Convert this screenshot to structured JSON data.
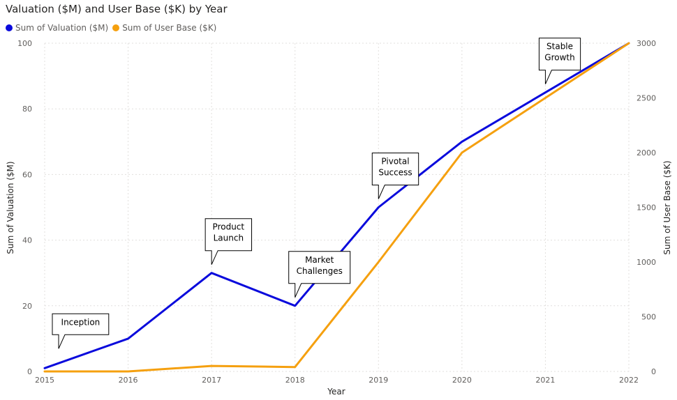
{
  "chart_data": {
    "type": "line",
    "title": "Valuation ($M) and User Base ($K) by Year",
    "xlabel": "Year",
    "ylabel": "Sum of Valuation ($M)",
    "y2label": "Sum of User Base ($K)",
    "categories": [
      "2015",
      "2016",
      "2017",
      "2018",
      "2019",
      "2020",
      "2021",
      "2022"
    ],
    "ylim": [
      0,
      100
    ],
    "y2lim": [
      0,
      3000
    ],
    "yticks": [
      "0",
      "20",
      "40",
      "60",
      "80",
      "100"
    ],
    "y2ticks": [
      "0",
      "500",
      "1000",
      "1500",
      "2000",
      "2500",
      "3000"
    ],
    "grid": true,
    "legend_position": "top-left",
    "series": [
      {
        "name": "Sum of Valuation ($M)",
        "axis": "left",
        "color": "#0a0adc",
        "values": [
          1,
          10,
          30,
          20,
          50,
          70,
          85,
          100
        ]
      },
      {
        "name": "Sum of User Base ($K)",
        "axis": "right",
        "color": "#f5a00f",
        "values": [
          0,
          0,
          50,
          40,
          1000,
          2000,
          2500,
          3000
        ]
      }
    ],
    "annotations": [
      {
        "index": 0,
        "lines": [
          "Inception"
        ]
      },
      {
        "index": 2,
        "lines": [
          "Product",
          "Launch"
        ]
      },
      {
        "index": 3,
        "lines": [
          "Market",
          "Challenges"
        ]
      },
      {
        "index": 4,
        "lines": [
          "Pivotal",
          "Success"
        ]
      },
      {
        "index": 6,
        "lines": [
          "Stable",
          "Growth"
        ]
      }
    ]
  }
}
